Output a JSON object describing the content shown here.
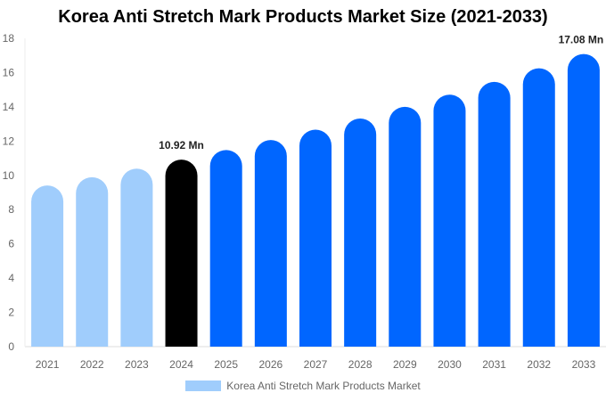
{
  "chart_data": {
    "type": "bar",
    "title": "Korea Anti Stretch Mark Products Market Size (2021-2033)",
    "categories": [
      "2021",
      "2022",
      "2023",
      "2024",
      "2025",
      "2026",
      "2027",
      "2028",
      "2029",
      "2030",
      "2031",
      "2032",
      "2033"
    ],
    "series": [
      {
        "name": "Korea Anti Stretch Mark Products Market",
        "values": [
          9.41,
          9.89,
          10.39,
          10.92,
          11.48,
          12.06,
          12.67,
          13.32,
          14.0,
          14.71,
          15.46,
          16.25,
          17.08
        ]
      }
    ],
    "data_labels": {
      "3": "10.92 Mn",
      "12": "17.08 Mn"
    },
    "ylim": [
      0,
      18
    ],
    "yticks": [
      0,
      2,
      4,
      6,
      8,
      10,
      12,
      14,
      16,
      18
    ],
    "grid": false,
    "legend_position": "bottom",
    "colors": {
      "historical": "#a0cdfc",
      "base_year": "#000000",
      "forecast": "#0066ff"
    }
  }
}
